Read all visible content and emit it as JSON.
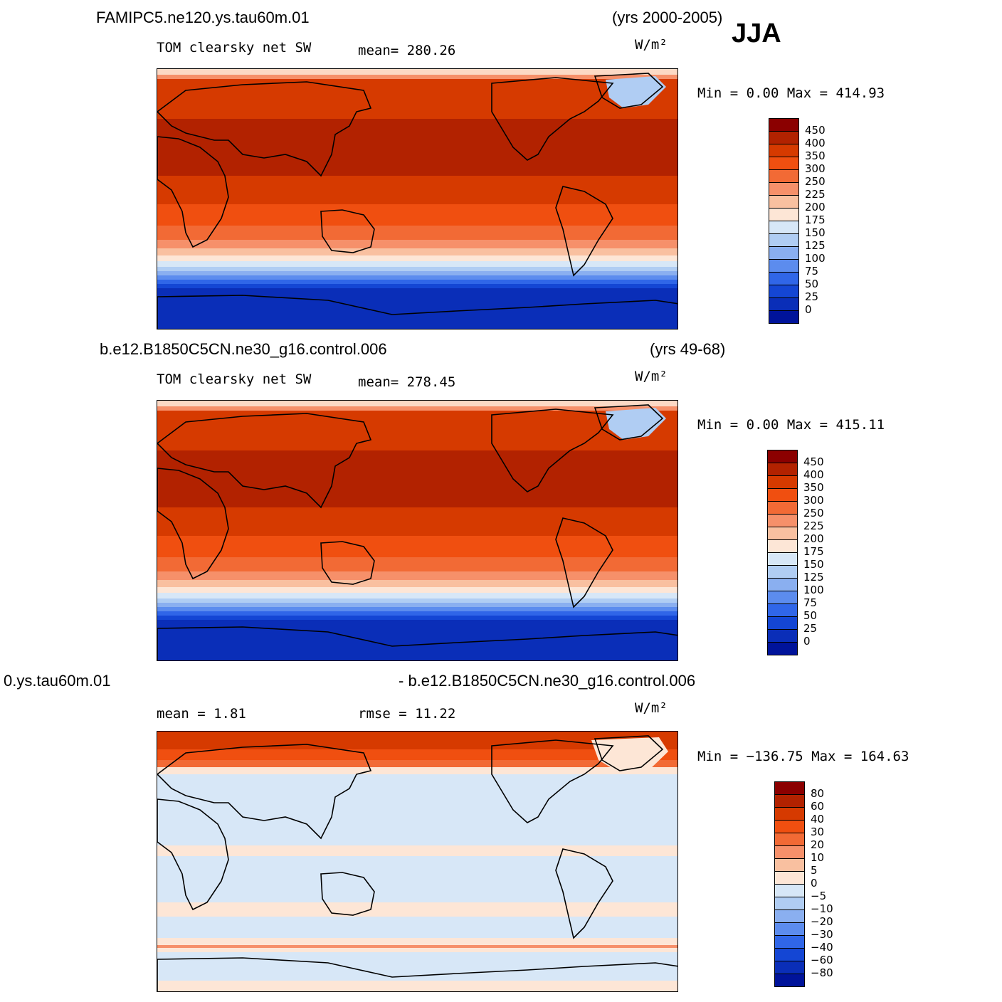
{
  "season": "JJA",
  "panels": [
    {
      "case_name": "FAMIPC5.ne120.ys.tau60m.01",
      "years": "(yrs 2000-2005)",
      "variable": "TOM clearsky net SW",
      "stat_left": "",
      "stat_mid": "mean= 280.26",
      "units": "W/m²",
      "minmax": "Min =    0.00 Max = 414.93",
      "kind": "abs"
    },
    {
      "case_name": "b.e12.B1850C5CN.ne30_g16.control.006",
      "years": "(yrs 49-68)",
      "variable": "TOM clearsky net SW",
      "stat_left": "",
      "stat_mid": "mean= 278.45",
      "units": "W/m²",
      "minmax": "Min =    0.00 Max = 415.11",
      "kind": "abs"
    },
    {
      "case_name": "0.ys.tau60m.01",
      "years": "- b.e12.B1850C5CN.ne30_g16.control.006",
      "variable": "",
      "stat_left": "mean =    1.81",
      "stat_mid": "rmse =   11.22",
      "units": "W/m²",
      "minmax": "Min = −136.75 Max = 164.63",
      "kind": "diff"
    }
  ],
  "colorbars": {
    "abs": {
      "labels": [
        "450",
        "400",
        "350",
        "300",
        "250",
        "225",
        "200",
        "175",
        "150",
        "125",
        "100",
        "75",
        "50",
        "25",
        "0"
      ],
      "colors": [
        "#8b0000",
        "#b22200",
        "#d63a00",
        "#f04f10",
        "#f26a35",
        "#f6906a",
        "#f9c0a0",
        "#fde6d6",
        "#d7e7f7",
        "#b0cdf3",
        "#8aaff0",
        "#5c8cee",
        "#3066e8",
        "#1446d4",
        "#0a2eb8",
        "#00139a"
      ]
    },
    "diff": {
      "labels": [
        "80",
        "60",
        "40",
        "30",
        "20",
        "10",
        "5",
        "0",
        "−5",
        "−10",
        "−20",
        "−30",
        "−40",
        "−60",
        "−80"
      ],
      "colors": [
        "#8b0000",
        "#b22200",
        "#d63a00",
        "#f04f10",
        "#f26a35",
        "#f6906a",
        "#f9c0a0",
        "#fde6d6",
        "#d7e7f7",
        "#b0cdf3",
        "#8aaff0",
        "#5c8cee",
        "#3066e8",
        "#1446d4",
        "#0a2eb8",
        "#00139a"
      ]
    }
  }
}
